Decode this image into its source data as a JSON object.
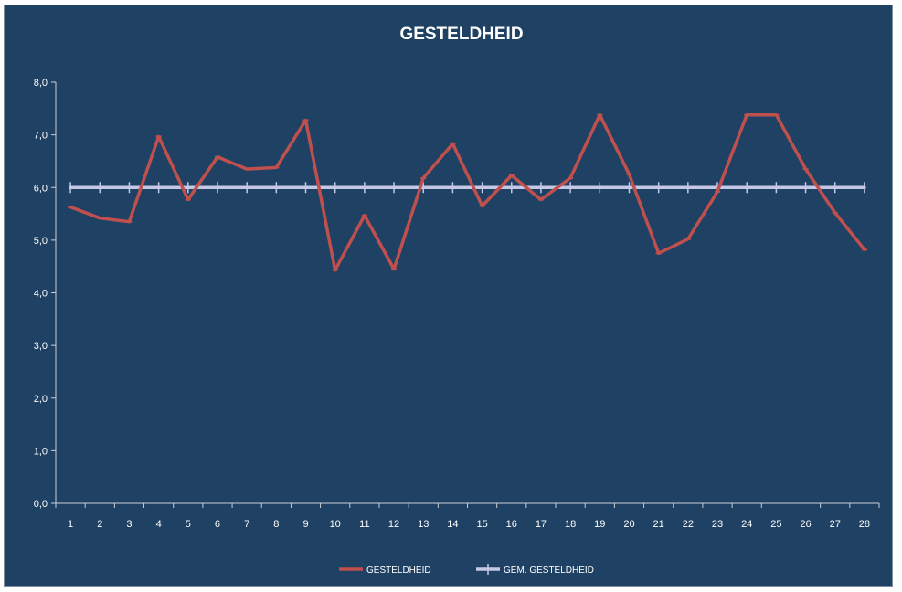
{
  "chart_data": {
    "type": "line",
    "title": "GESTELDHEID",
    "xlabel": "",
    "ylabel": "",
    "categories": [
      "1",
      "2",
      "3",
      "4",
      "5",
      "6",
      "7",
      "8",
      "9",
      "10",
      "11",
      "12",
      "13",
      "14",
      "15",
      "16",
      "17",
      "18",
      "19",
      "20",
      "21",
      "22",
      "23",
      "24",
      "25",
      "26",
      "27",
      "28"
    ],
    "ylim": [
      0,
      8
    ],
    "yticks": [
      "0,0",
      "1,0",
      "2,0",
      "3,0",
      "4,0",
      "5,0",
      "6,0",
      "7,0",
      "8,0"
    ],
    "grid": false,
    "legend_position": "bottom",
    "series": [
      {
        "name": "GESTELDHEID",
        "color": "#c0504d",
        "values": [
          5.63,
          5.42,
          5.35,
          6.97,
          5.77,
          6.58,
          6.35,
          6.38,
          7.28,
          4.43,
          5.47,
          4.45,
          6.18,
          6.83,
          5.65,
          6.23,
          5.77,
          6.18,
          7.38,
          6.25,
          4.75,
          5.02,
          5.92,
          7.38,
          7.38,
          6.35,
          5.52,
          4.82
        ]
      },
      {
        "name": "GEM. GESTELDHEID",
        "color": "#c5c7e6",
        "values": [
          6.0,
          6.0,
          6.0,
          6.0,
          6.0,
          6.0,
          6.0,
          6.0,
          6.0,
          6.0,
          6.0,
          6.0,
          6.0,
          6.0,
          6.0,
          6.0,
          6.0,
          6.0,
          6.0,
          6.0,
          6.0,
          6.0,
          6.0,
          6.0,
          6.0,
          6.0,
          6.0,
          6.0
        ]
      }
    ]
  },
  "colors": {
    "background": "#1f4163",
    "axis": "#c8cdd4",
    "text": "#ffffff"
  }
}
